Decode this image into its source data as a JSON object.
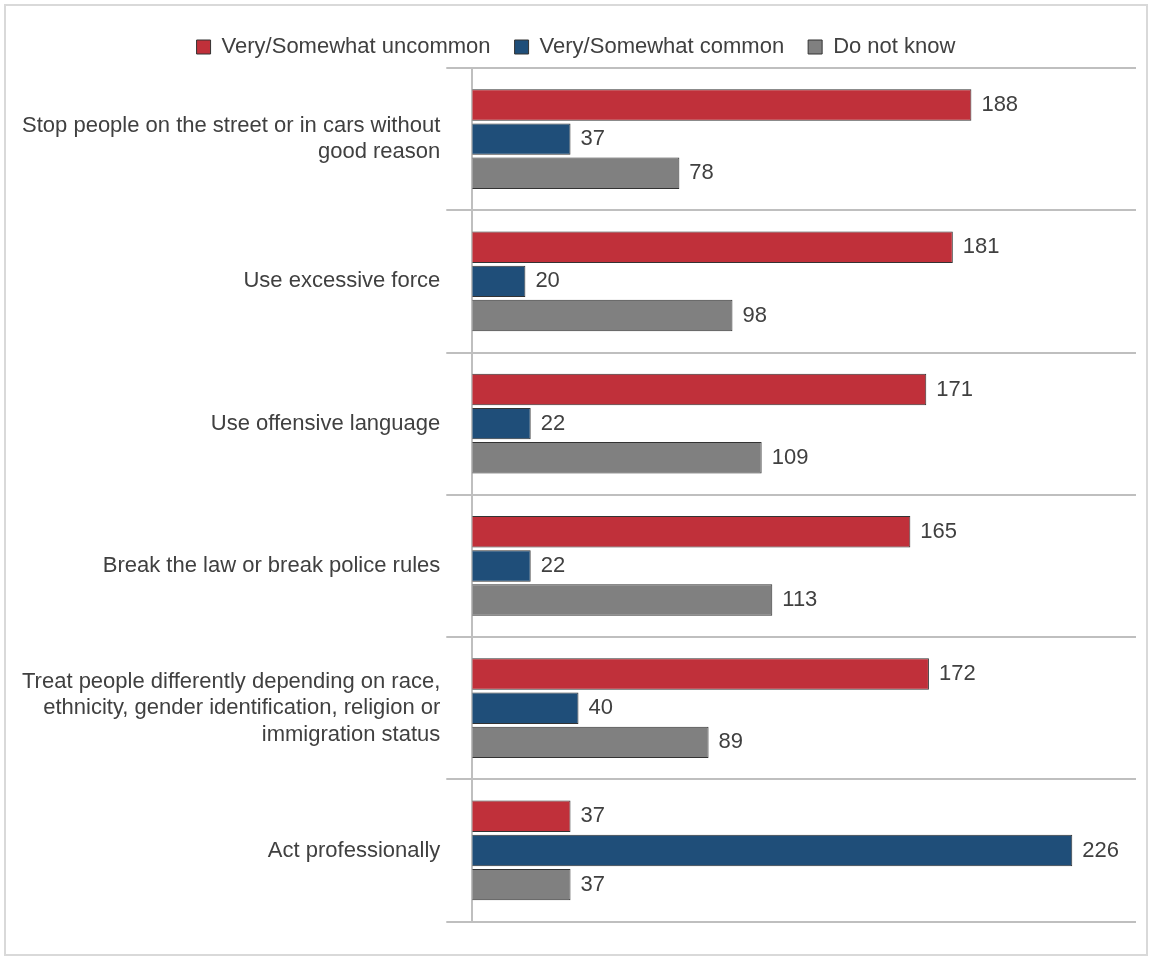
{
  "chart_data": {
    "type": "bar",
    "orientation": "horizontal",
    "categories": [
      "Stop people on the street or in cars without good reason",
      "Use excessive force",
      "Use offensive language",
      "Break the law or break police rules",
      "Treat people differently depending on race, ethnicity, gender identification, religion or immigration status",
      "Act professionally"
    ],
    "series": [
      {
        "name": "Very/Somewhat uncommon",
        "color": "#c0303a",
        "values": [
          188,
          181,
          171,
          165,
          172,
          37
        ]
      },
      {
        "name": "Very/Somewhat common",
        "color": "#1f4e79",
        "values": [
          37,
          20,
          22,
          22,
          40,
          226
        ]
      },
      {
        "name": "Do not know",
        "color": "#808080",
        "values": [
          78,
          98,
          109,
          113,
          89,
          37
        ]
      }
    ],
    "data_labels": true,
    "legend": "top",
    "grid": "y"
  }
}
